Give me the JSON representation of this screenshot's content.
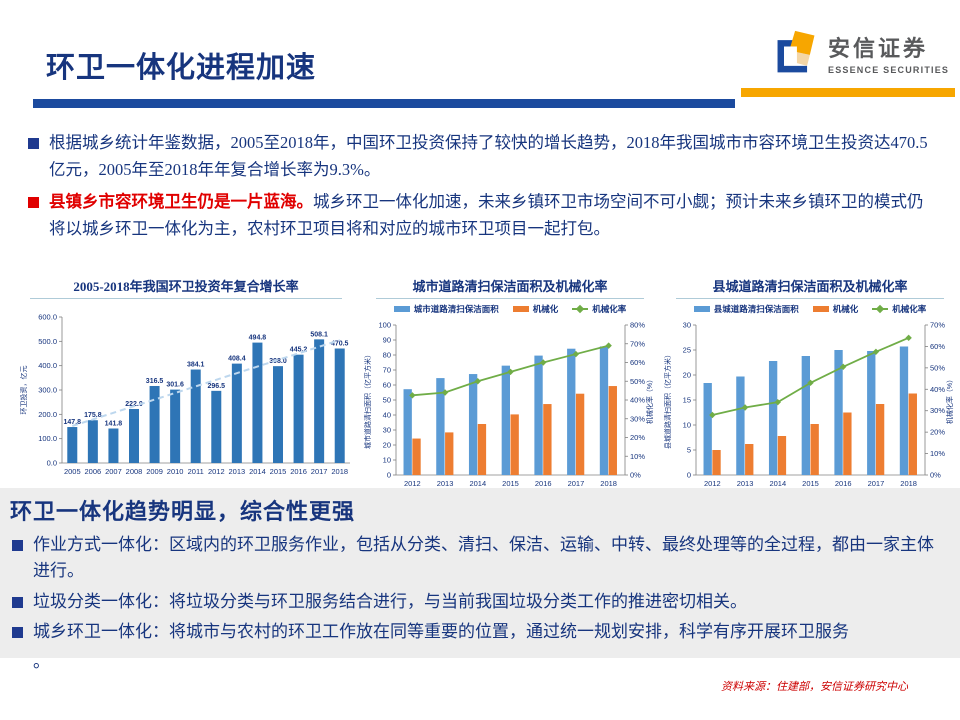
{
  "header": {
    "title": "环卫一体化进程加速",
    "logo_cn": "安信证券",
    "logo_en": "ESSENCE SECURITIES"
  },
  "bullets_top": [
    {
      "text": "根据城乡统计年鉴数据，2005至2018年，中国环卫投资保持了较快的增长趋势，2018年我国城市市容环境卫生投资达470.5亿元，2005年至2018年年复合增长率为9.3%。"
    },
    {
      "lead": "县镇乡市容环境卫生仍是一片蓝海。",
      "rest": "城乡环卫一体化加速，未来乡镇环卫市场空间不可小觑；预计未来乡镇环卫的模式仍将以城乡环卫一体化为主，农村环卫项目将和对应的城市环卫项目一起打包。"
    }
  ],
  "chart_data": [
    {
      "type": "bar",
      "title": "2005-2018年我国环卫投资年复合增长率",
      "ylabel": "环卫投资，亿元",
      "categories": [
        "2005",
        "2006",
        "2007",
        "2008",
        "2009",
        "2010",
        "2011",
        "2012",
        "2013",
        "2014",
        "2015",
        "2016",
        "2017",
        "2018"
      ],
      "values": [
        147.8,
        175.8,
        141.8,
        222.0,
        316.5,
        301.6,
        384.1,
        296.5,
        408.4,
        494.8,
        398.0,
        445.2,
        508.1,
        470.5
      ],
      "ylim": [
        0,
        600
      ],
      "ytick_step": 100,
      "bar_color": "#2E75B6",
      "trendline": {
        "start": 152,
        "end": 505,
        "color": "#BDD7EE"
      },
      "grid": false,
      "legend_position": "none"
    },
    {
      "type": "bar-line-dual",
      "title": "城市道路清扫保洁面积及机械化率",
      "categories": [
        "2012",
        "2013",
        "2014",
        "2015",
        "2016",
        "2017",
        "2018"
      ],
      "ylabel_left": "城市道路清扫面积（亿平方米）",
      "ylabel_right": "机械化率（%）",
      "ylim_left": [
        0,
        100
      ],
      "ytick_left": 10,
      "ylim_right": [
        0,
        80
      ],
      "ytick_right": 10,
      "grid": false,
      "legend_position": "top",
      "series": [
        {
          "name": "城市道路清扫保洁面积",
          "type": "bar",
          "color": "#5B9BD5",
          "values": [
            57.2,
            64.6,
            67.3,
            72.9,
            79.6,
            84.2,
            85.7
          ]
        },
        {
          "name": "机械化",
          "type": "bar",
          "color": "#ED7D31",
          "values": [
            24.3,
            28.4,
            34.0,
            40.4,
            47.3,
            54.2,
            59.3
          ]
        },
        {
          "name": "机械化率",
          "type": "line",
          "color": "#70AD47",
          "values": [
            42.5,
            44.0,
            50.0,
            55.0,
            60.0,
            64.5,
            69.0
          ]
        }
      ]
    },
    {
      "type": "bar-line-dual",
      "title": "县城道路清扫保洁面积及机械化率",
      "categories": [
        "2012",
        "2013",
        "2014",
        "2015",
        "2016",
        "2017",
        "2018"
      ],
      "ylabel_left": "县城道路清扫面积（亿平方米）",
      "ylabel_right": "机械化率（%）",
      "ylim_left": [
        0,
        30
      ],
      "ytick_left": 5,
      "ylim_right": [
        0,
        70
      ],
      "ytick_right": 10,
      "grid": false,
      "legend_position": "top",
      "series": [
        {
          "name": "县城道路清扫保洁面积",
          "type": "bar",
          "color": "#5B9BD5",
          "values": [
            18.4,
            19.7,
            22.8,
            23.8,
            25.0,
            24.8,
            25.7
          ]
        },
        {
          "name": "机械化",
          "type": "bar",
          "color": "#ED7D31",
          "values": [
            5.0,
            6.2,
            7.8,
            10.2,
            12.5,
            14.2,
            16.3
          ]
        },
        {
          "name": "机械化率",
          "type": "line",
          "color": "#70AD47",
          "values": [
            28.0,
            31.5,
            34.0,
            43.0,
            50.5,
            57.5,
            64.0
          ]
        }
      ]
    }
  ],
  "bottom": {
    "heading": "环卫一体化趋势明显，综合性更强",
    "bullets": [
      "作业方式一体化：区域内的环卫服务作业，包括从分类、清扫、保洁、运输、中转、最终处理等的全过程，都由一家主体进行。",
      "垃圾分类一体化：将垃圾分类与环卫服务结合进行，与当前我国垃圾分类工作的推进密切相关。",
      "城乡环卫一体化：将城市与农村的环卫工作放在同等重要的位置，通过统一规划安排，科学有序开展环卫服务"
    ],
    "trailing": "。"
  },
  "source": "资料来源：住建部，安信证券研究中心",
  "colors": {
    "navy_text": "#17357E",
    "header_bar_blue": "#1B4A9E",
    "header_bar_orange": "#F7A600",
    "bullet_red": "#E00000",
    "chart1_bar": "#2E75B6",
    "series_blue": "#5B9BD5",
    "series_orange": "#ED7D31",
    "series_green": "#70AD47"
  }
}
